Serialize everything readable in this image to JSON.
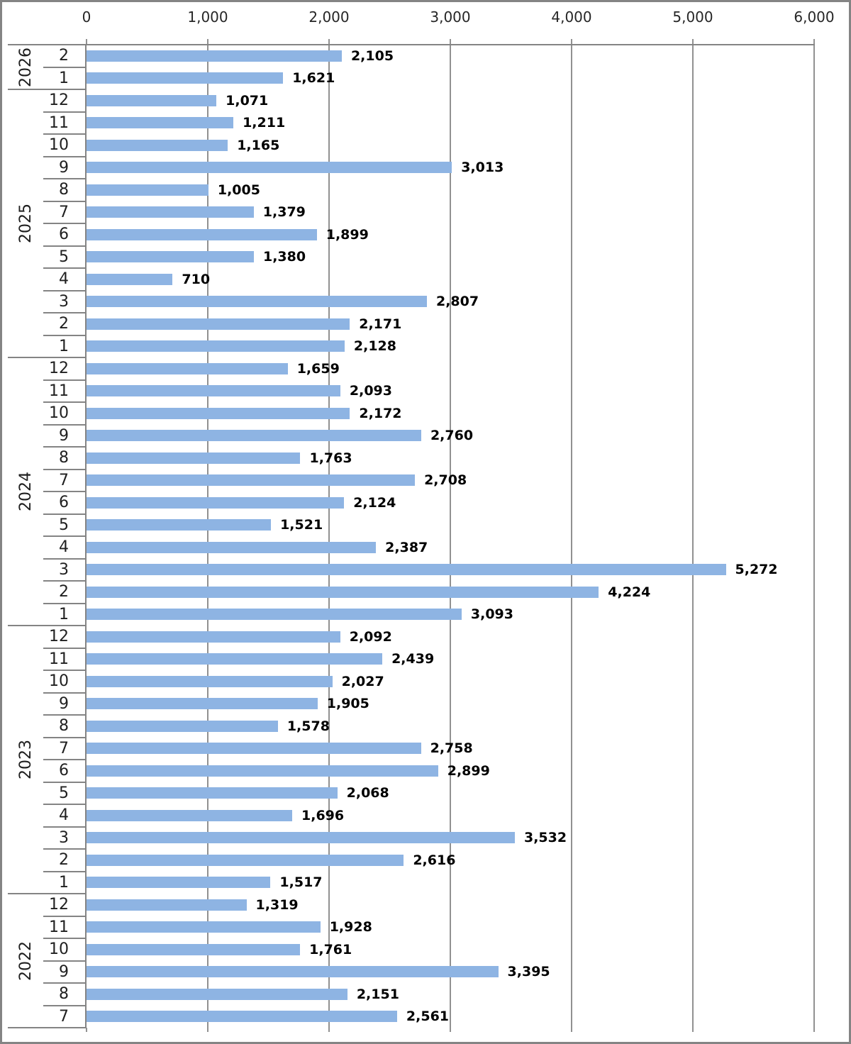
{
  "chart_data": {
    "type": "bar",
    "orientation": "horizontal",
    "title": "",
    "xlabel": "",
    "ylabel": "",
    "grid": true,
    "legend": false,
    "axis": {
      "min": 0,
      "max": 6000,
      "step": 1000,
      "tick_values": [
        0,
        1000,
        2000,
        3000,
        4000,
        5000,
        6000
      ],
      "tick_labels": [
        "0",
        "1,000",
        "2,000",
        "3,000",
        "4,000",
        "5,000",
        "6,000"
      ]
    },
    "groups": [
      {
        "year": "2026",
        "rows": [
          {
            "month": "2",
            "value": 2105,
            "label": "2,105"
          },
          {
            "month": "1",
            "value": 1621,
            "label": "1,621"
          }
        ]
      },
      {
        "year": "2025",
        "rows": [
          {
            "month": "12",
            "value": 1071,
            "label": "1,071"
          },
          {
            "month": "11",
            "value": 1211,
            "label": "1,211"
          },
          {
            "month": "10",
            "value": 1165,
            "label": "1,165"
          },
          {
            "month": "9",
            "value": 3013,
            "label": "3,013"
          },
          {
            "month": "8",
            "value": 1005,
            "label": "1,005"
          },
          {
            "month": "7",
            "value": 1379,
            "label": "1,379"
          },
          {
            "month": "6",
            "value": 1899,
            "label": "1,899"
          },
          {
            "month": "5",
            "value": 1380,
            "label": "1,380"
          },
          {
            "month": "4",
            "value": 710,
            "label": "710"
          },
          {
            "month": "3",
            "value": 2807,
            "label": "2,807"
          },
          {
            "month": "2",
            "value": 2171,
            "label": "2,171"
          },
          {
            "month": "1",
            "value": 2128,
            "label": "2,128"
          }
        ]
      },
      {
        "year": "2024",
        "rows": [
          {
            "month": "12",
            "value": 1659,
            "label": "1,659"
          },
          {
            "month": "11",
            "value": 2093,
            "label": "2,093"
          },
          {
            "month": "10",
            "value": 2172,
            "label": "2,172"
          },
          {
            "month": "9",
            "value": 2760,
            "label": "2,760"
          },
          {
            "month": "8",
            "value": 1763,
            "label": "1,763"
          },
          {
            "month": "7",
            "value": 2708,
            "label": "2,708"
          },
          {
            "month": "6",
            "value": 2124,
            "label": "2,124"
          },
          {
            "month": "5",
            "value": 1521,
            "label": "1,521"
          },
          {
            "month": "4",
            "value": 2387,
            "label": "2,387"
          },
          {
            "month": "3",
            "value": 5272,
            "label": "5,272"
          },
          {
            "month": "2",
            "value": 4224,
            "label": "4,224"
          },
          {
            "month": "1",
            "value": 3093,
            "label": "3,093"
          }
        ]
      },
      {
        "year": "2023",
        "rows": [
          {
            "month": "12",
            "value": 2092,
            "label": "2,092"
          },
          {
            "month": "11",
            "value": 2439,
            "label": "2,439"
          },
          {
            "month": "10",
            "value": 2027,
            "label": "2,027"
          },
          {
            "month": "9",
            "value": 1905,
            "label": "1,905"
          },
          {
            "month": "8",
            "value": 1578,
            "label": "1,578"
          },
          {
            "month": "7",
            "value": 2758,
            "label": "2,758"
          },
          {
            "month": "6",
            "value": 2899,
            "label": "2,899"
          },
          {
            "month": "5",
            "value": 2068,
            "label": "2,068"
          },
          {
            "month": "4",
            "value": 1696,
            "label": "1,696"
          },
          {
            "month": "3",
            "value": 3532,
            "label": "3,532"
          },
          {
            "month": "2",
            "value": 2616,
            "label": "2,616"
          },
          {
            "month": "1",
            "value": 1517,
            "label": "1,517"
          }
        ]
      },
      {
        "year": "2022",
        "rows": [
          {
            "month": "12",
            "value": 1319,
            "label": "1,319"
          },
          {
            "month": "11",
            "value": 1928,
            "label": "1,928"
          },
          {
            "month": "10",
            "value": 1761,
            "label": "1,761"
          },
          {
            "month": "9",
            "value": 3395,
            "label": "3,395"
          },
          {
            "month": "8",
            "value": 2151,
            "label": "2,151"
          },
          {
            "month": "7",
            "value": 2561,
            "label": "2,561"
          }
        ]
      }
    ],
    "colors": {
      "bar": "#8EB4E3",
      "gridline": "#919191",
      "category_line": "#848484",
      "frame": "#848484",
      "tick_text": "#262626",
      "category_text": "#1f1f1f",
      "value_text": "#000000",
      "background": "#ffffff"
    }
  }
}
